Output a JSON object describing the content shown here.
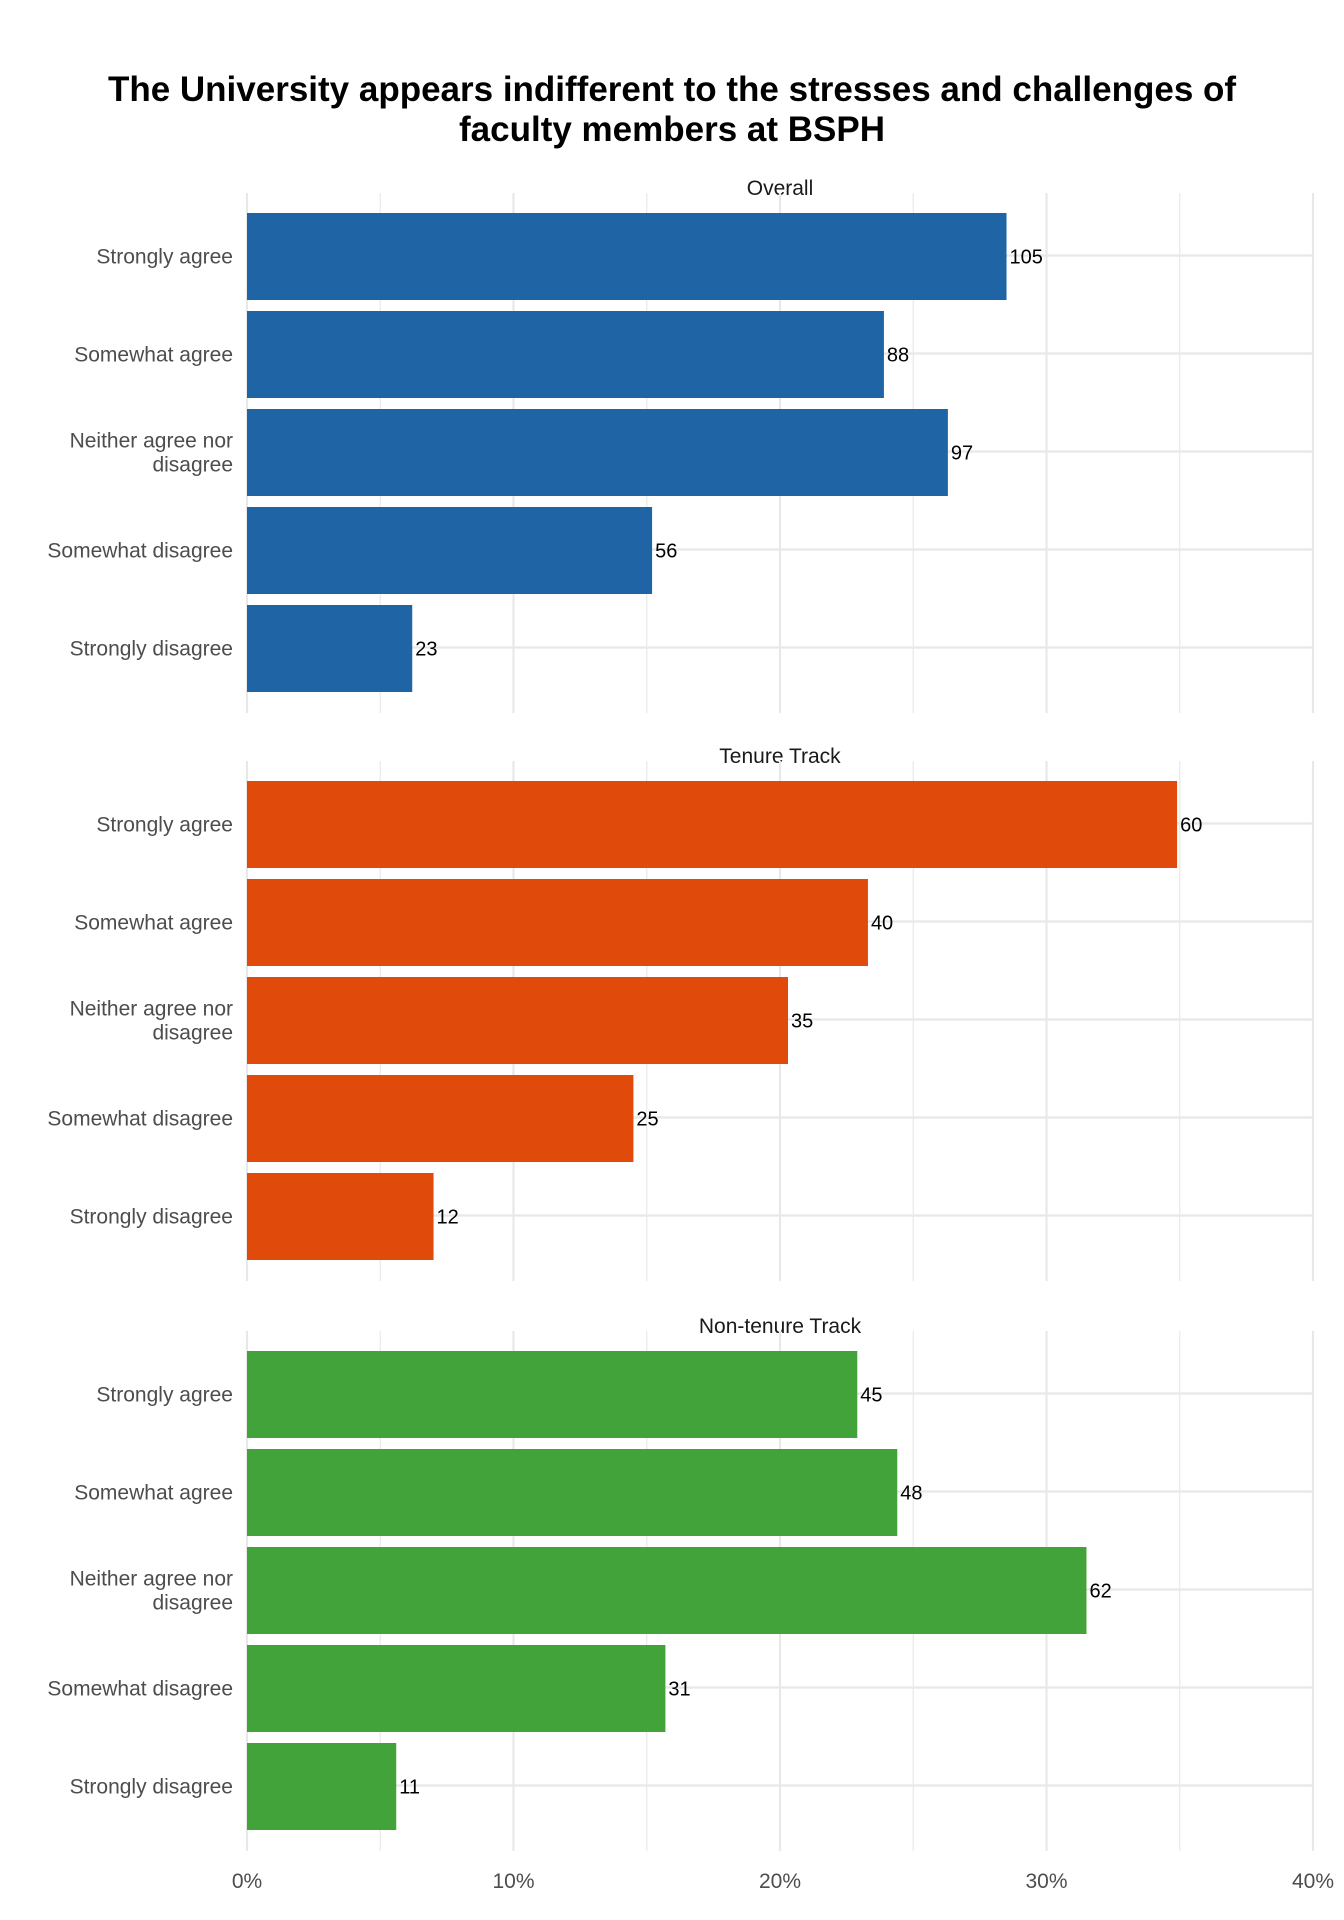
{
  "chart_data": {
    "type": "bar",
    "orientation": "horizontal",
    "title_lines": [
      "The University appears indifferent to the stresses and challenges of",
      "faculty members at BSPH"
    ],
    "categories": [
      "Strongly agree",
      "Somewhat agree",
      "Neither agree nor disagree",
      "Somewhat disagree",
      "Strongly disagree"
    ],
    "x_ticks": [
      "0%",
      "10%",
      "20%",
      "30%",
      "40%"
    ],
    "xlim": [
      0,
      0.4
    ],
    "grid": true,
    "panels": [
      {
        "label": "Overall",
        "color": "#1f65a6",
        "counts": [
          105,
          88,
          97,
          56,
          23
        ],
        "shares": [
          0.285,
          0.239,
          0.263,
          0.152,
          0.062
        ]
      },
      {
        "label": "Tenure Track",
        "color": "#e04a0a",
        "counts": [
          60,
          40,
          35,
          25,
          12
        ],
        "shares": [
          0.349,
          0.233,
          0.203,
          0.145,
          0.07
        ]
      },
      {
        "label": "Non-tenure Track",
        "color": "#43a33b",
        "counts": [
          45,
          48,
          62,
          31,
          11
        ],
        "shares": [
          0.229,
          0.244,
          0.315,
          0.157,
          0.056
        ]
      }
    ]
  }
}
